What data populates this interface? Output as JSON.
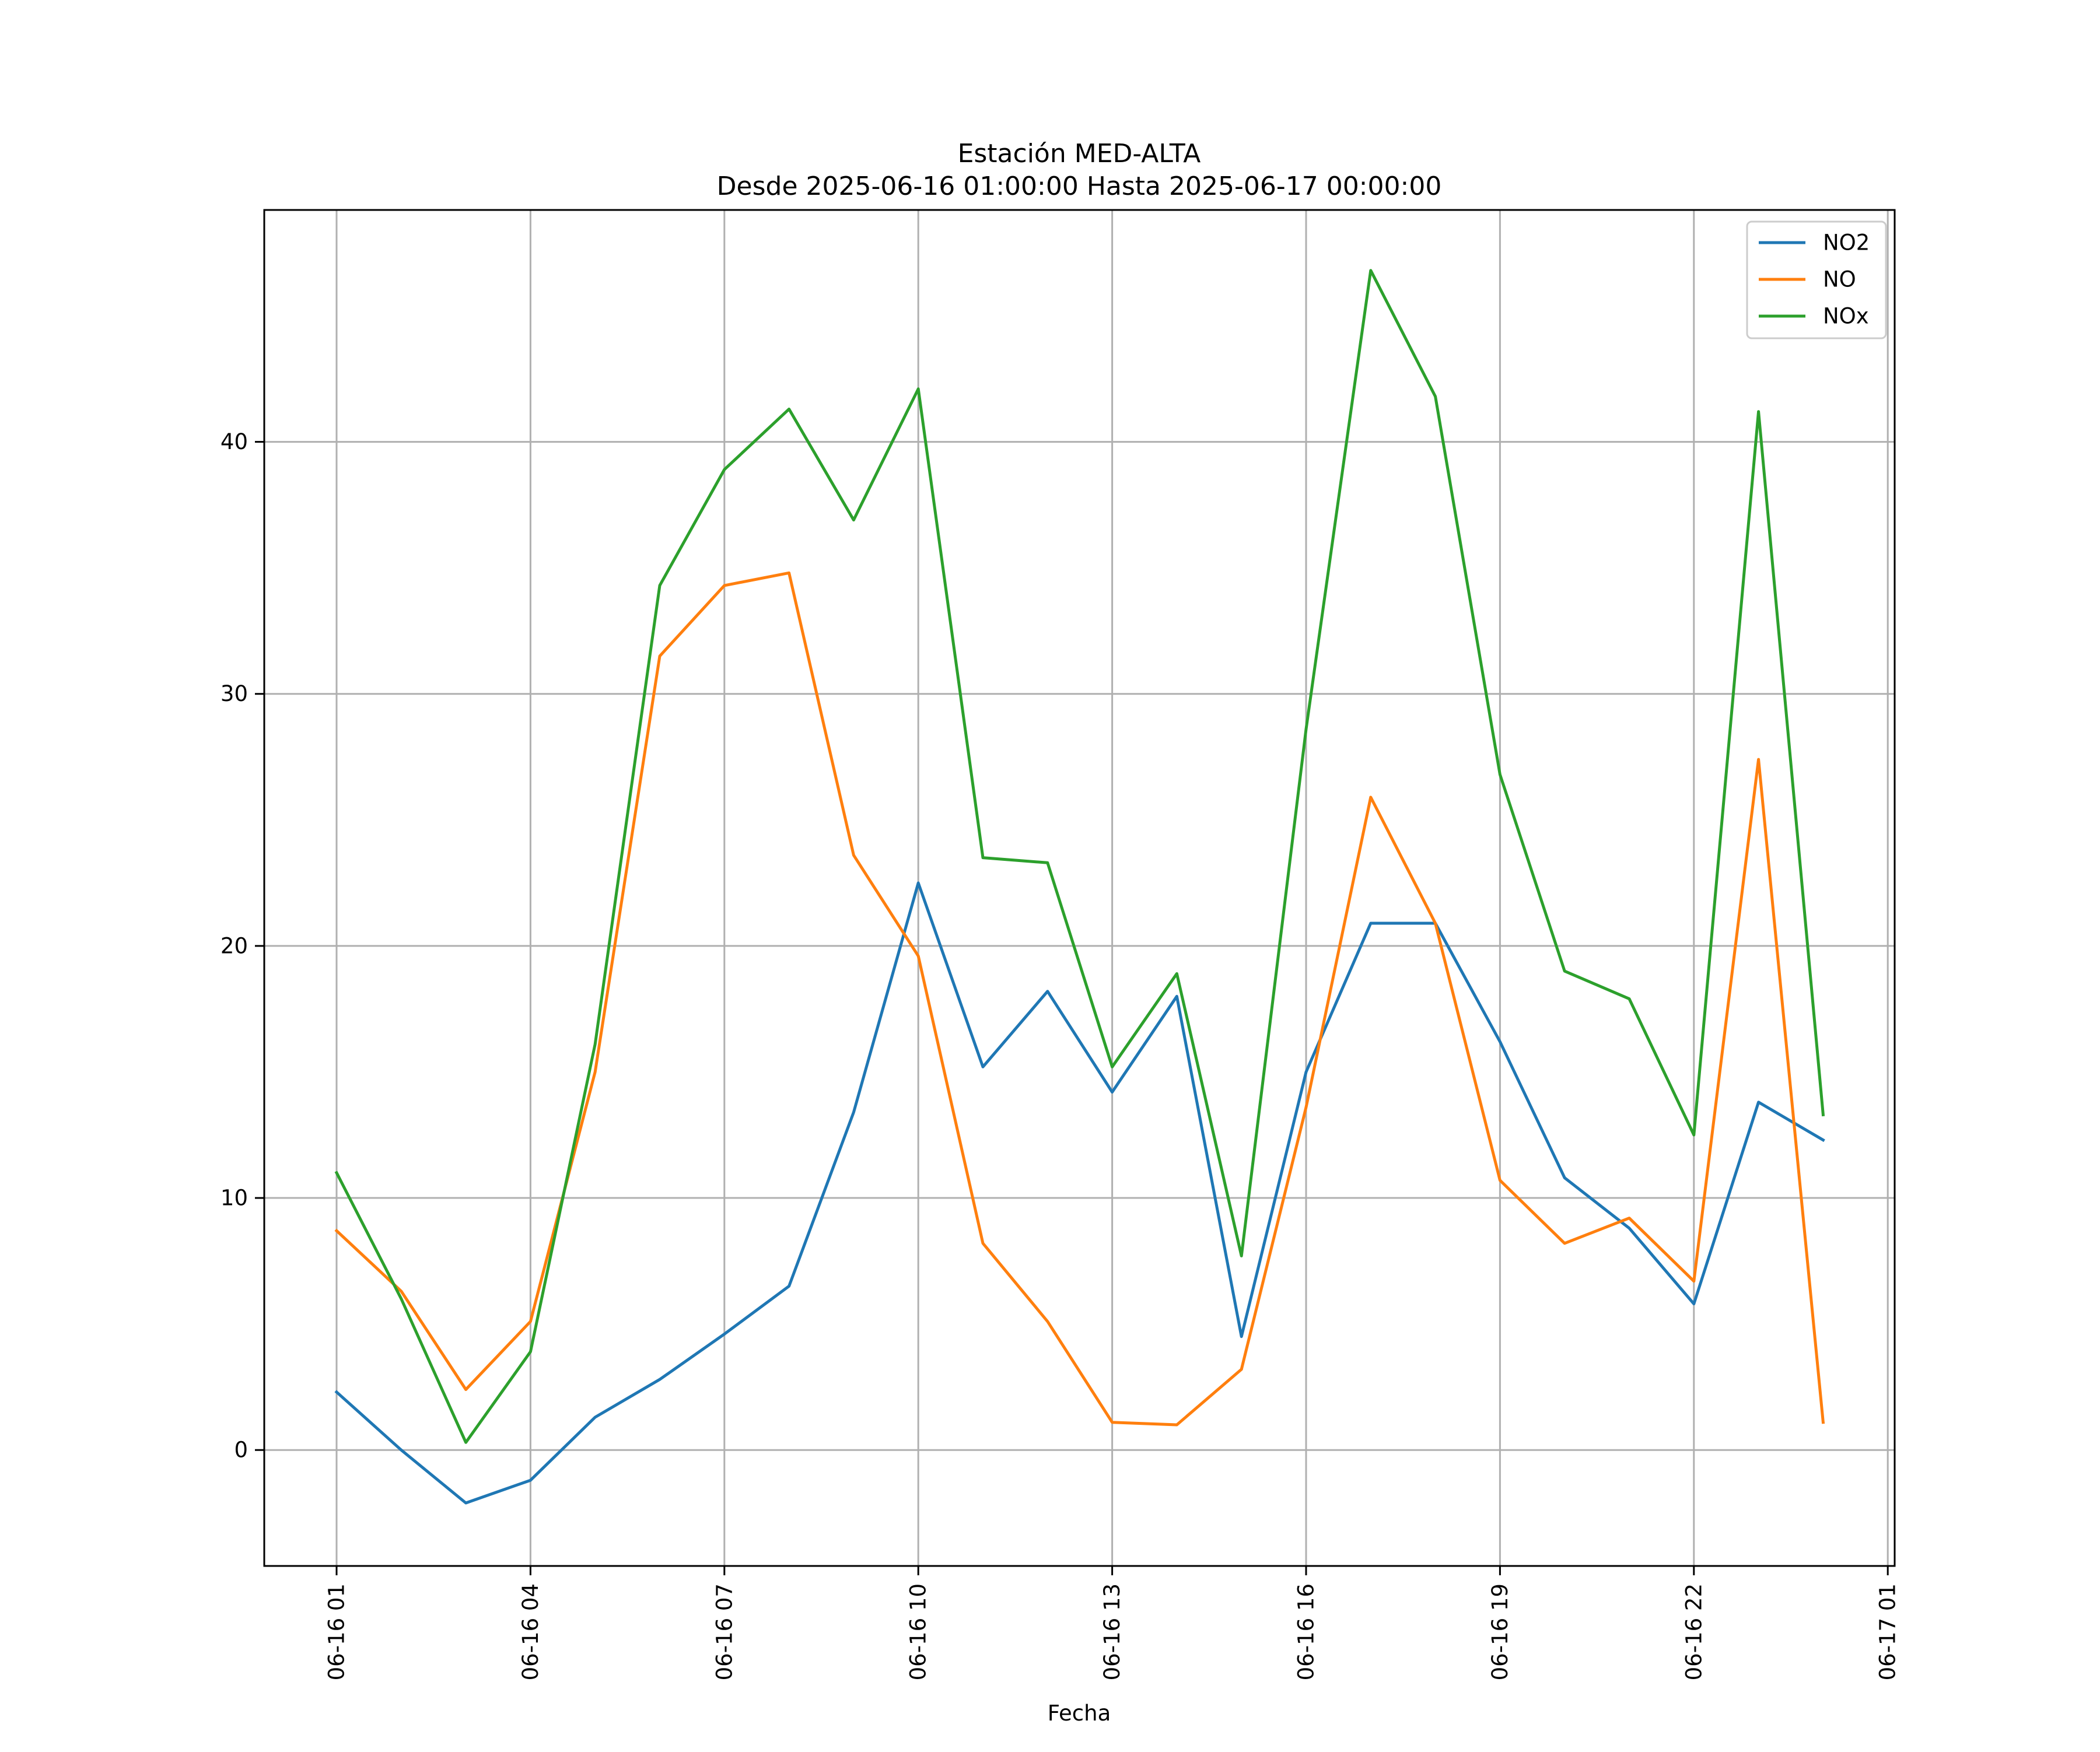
{
  "chart_data": {
    "type": "line",
    "title": "Estación MED-ALTA",
    "subtitle": "Desde 2025-06-16 01:00:00 Hasta 2025-06-17 00:00:00",
    "xlabel": "Fecha",
    "ylabel": "",
    "x": [
      "2025-06-16 01:00",
      "2025-06-16 02:00",
      "2025-06-16 03:00",
      "2025-06-16 04:00",
      "2025-06-16 05:00",
      "2025-06-16 06:00",
      "2025-06-16 07:00",
      "2025-06-16 08:00",
      "2025-06-16 09:00",
      "2025-06-16 10:00",
      "2025-06-16 11:00",
      "2025-06-16 12:00",
      "2025-06-16 13:00",
      "2025-06-16 14:00",
      "2025-06-16 15:00",
      "2025-06-16 16:00",
      "2025-06-16 17:00",
      "2025-06-16 18:00",
      "2025-06-16 19:00",
      "2025-06-16 20:00",
      "2025-06-16 21:00",
      "2025-06-16 22:00",
      "2025-06-16 23:00",
      "2025-06-17 00:00"
    ],
    "series": [
      {
        "name": "NO2",
        "color": "#1f77b4",
        "values": [
          2.3,
          0.0,
          -2.1,
          -1.2,
          1.3,
          2.8,
          4.6,
          6.5,
          13.4,
          22.5,
          15.2,
          18.2,
          14.2,
          18.0,
          4.5,
          15.0,
          20.9,
          20.9,
          16.2,
          10.8,
          8.8,
          5.8,
          13.8,
          12.3
        ]
      },
      {
        "name": "NO",
        "color": "#ff7f0e",
        "values": [
          8.7,
          6.3,
          2.4,
          5.1,
          15.0,
          31.5,
          34.3,
          34.8,
          23.6,
          19.6,
          8.2,
          5.1,
          1.1,
          1.0,
          3.2,
          13.6,
          25.9,
          20.9,
          10.7,
          8.2,
          9.2,
          6.7,
          27.4,
          1.1
        ]
      },
      {
        "name": "NOx",
        "color": "#2ca02c",
        "values": [
          11.0,
          6.0,
          0.3,
          3.9,
          16.1,
          34.3,
          38.9,
          41.3,
          36.9,
          42.1,
          23.5,
          23.3,
          15.2,
          18.9,
          7.7,
          28.6,
          46.8,
          41.8,
          26.8,
          19.0,
          17.9,
          12.5,
          41.2,
          13.3
        ]
      }
    ],
    "x_ticks": [
      "06-16 01",
      "06-16 04",
      "06-16 07",
      "06-16 10",
      "06-16 13",
      "06-16 16",
      "06-16 19",
      "06-16 22",
      "06-17 01"
    ],
    "y_ticks": [
      0,
      10,
      20,
      30,
      40
    ],
    "ylim": [
      -4.6,
      49.2
    ],
    "grid": true,
    "legend_placement": "top-right"
  }
}
